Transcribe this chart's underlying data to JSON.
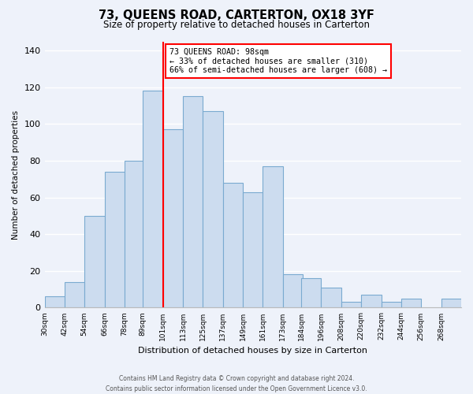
{
  "title": "73, QUEENS ROAD, CARTERTON, OX18 3YF",
  "subtitle": "Size of property relative to detached houses in Carterton",
  "xlabel": "Distribution of detached houses by size in Carterton",
  "ylabel": "Number of detached properties",
  "bar_labels": [
    "30sqm",
    "42sqm",
    "54sqm",
    "66sqm",
    "78sqm",
    "89sqm",
    "101sqm",
    "113sqm",
    "125sqm",
    "137sqm",
    "149sqm",
    "161sqm",
    "173sqm",
    "184sqm",
    "196sqm",
    "208sqm",
    "220sqm",
    "232sqm",
    "244sqm",
    "256sqm",
    "268sqm"
  ],
  "bar_heights": [
    6,
    14,
    50,
    74,
    80,
    118,
    97,
    115,
    107,
    68,
    63,
    77,
    18,
    16,
    11,
    3,
    7,
    3,
    5,
    0,
    5
  ],
  "bar_color": "#ccdcef",
  "bar_edge_color": "#7aaad0",
  "marker_x_data": 101,
  "annotation_title": "73 QUEENS ROAD: 98sqm",
  "annotation_line1": "← 33% of detached houses are smaller (310)",
  "annotation_line2": "66% of semi-detached houses are larger (608) →",
  "ylim": [
    0,
    145
  ],
  "yticks": [
    0,
    20,
    40,
    60,
    80,
    100,
    120,
    140
  ],
  "bin_starts": [
    30,
    42,
    54,
    66,
    78,
    89,
    101,
    113,
    125,
    137,
    149,
    161,
    173,
    184,
    196,
    208,
    220,
    232,
    244,
    256,
    268
  ],
  "bin_width": 12,
  "xlim_min": 30,
  "xlim_max": 280,
  "footer1": "Contains HM Land Registry data © Crown copyright and database right 2024.",
  "footer2": "Contains public sector information licensed under the Open Government Licence v3.0.",
  "bg_color": "#eef2fa",
  "grid_color": "#ffffff"
}
